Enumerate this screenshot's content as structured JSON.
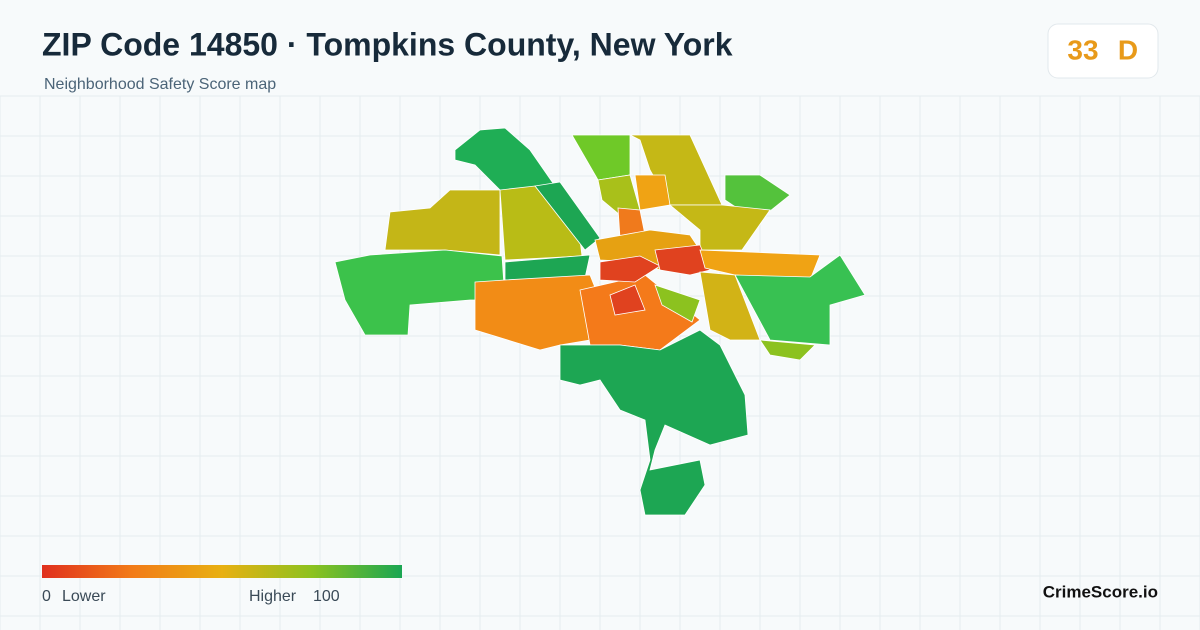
{
  "header": {
    "title": "ZIP Code 14850 · Tompkins County, New York",
    "subtitle": "Neighborhood Safety Score map"
  },
  "score": {
    "value": 33,
    "grade": "D"
  },
  "legend": {
    "min": 0,
    "min_label": "Lower",
    "max_label": "Higher",
    "max": 100
  },
  "brand": "CrimeScore.io"
}
